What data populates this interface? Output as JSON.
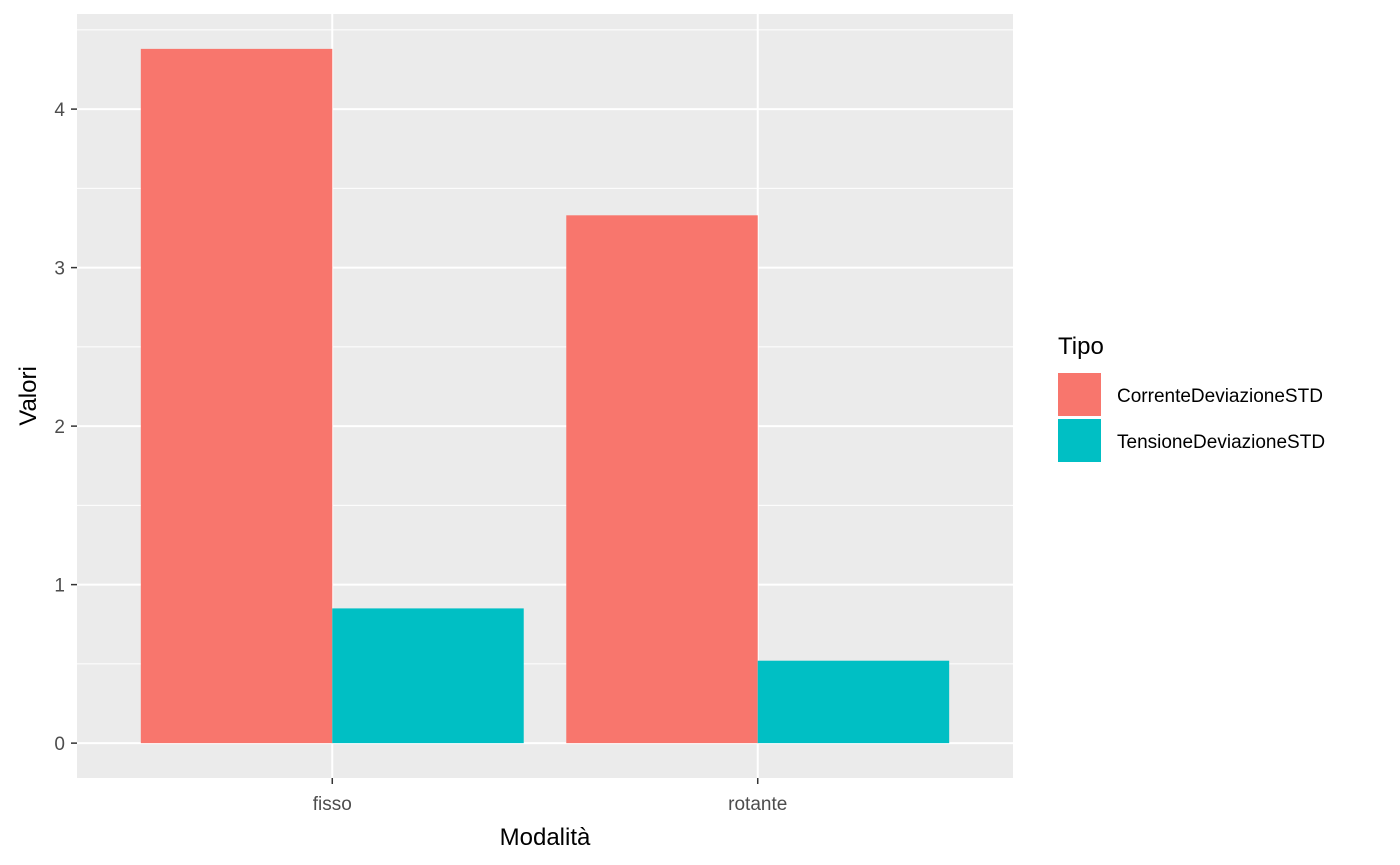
{
  "chart_data": {
    "type": "bar",
    "categories": [
      "fisso",
      "rotante"
    ],
    "series": [
      {
        "name": "CorrenteDeviazioneSTD",
        "values": [
          4.38,
          3.33
        ],
        "color": "#F8766D"
      },
      {
        "name": "TensioneDeviazioneSTD",
        "values": [
          0.85,
          0.52
        ],
        "color": "#00BFC4"
      }
    ],
    "title": "",
    "xlabel": "Modalità",
    "ylabel": "Valori",
    "ylim": [
      -0.22,
      4.6
    ],
    "yticks": [
      0,
      1,
      2,
      3,
      4
    ],
    "grid": true,
    "panel_background": "#EBEBEB",
    "grid_color": "#FFFFFF",
    "legend": {
      "title": "Tipo",
      "position": "right"
    }
  }
}
